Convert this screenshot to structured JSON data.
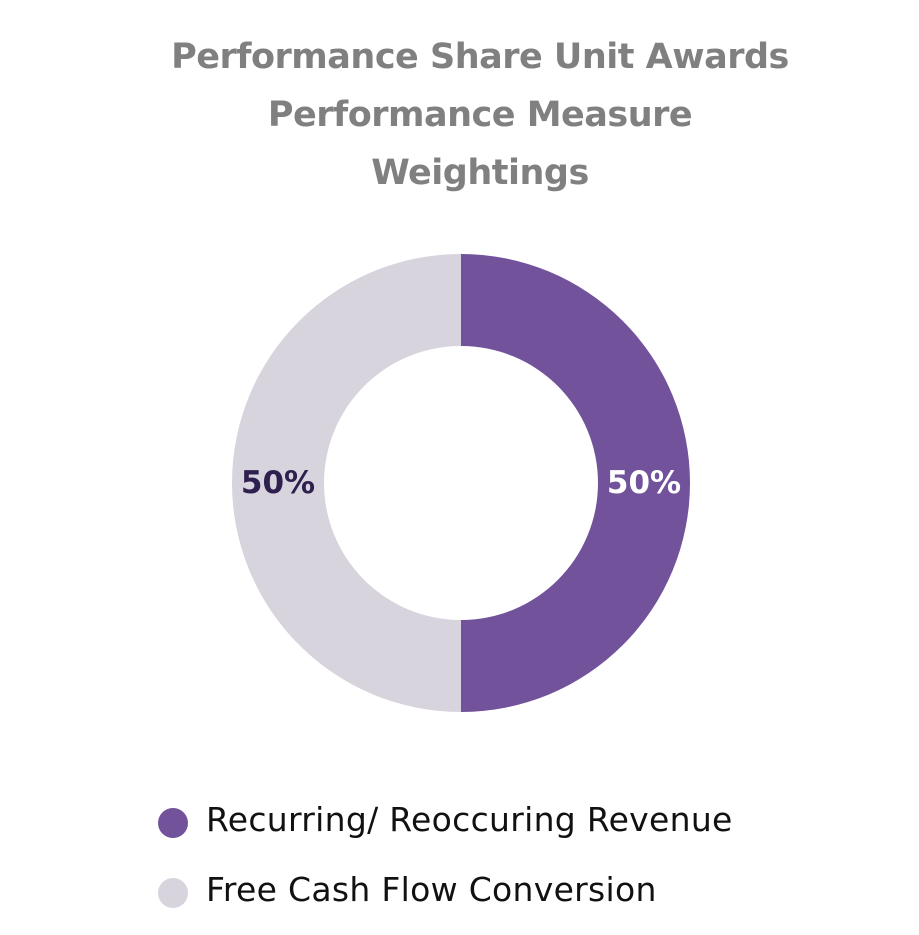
{
  "chart_data": {
    "type": "pie",
    "style": "donut",
    "title_lines": [
      "Performance Share Unit Awards",
      "Performance Measure",
      "Weightings"
    ],
    "title": "Performance Share Unit Awards Performance Measure Weightings",
    "slices": [
      {
        "label": "Recurring/ Reoccuring Revenue",
        "value": 50,
        "display": "50%",
        "color": "#71529b",
        "label_color": "#ffffff"
      },
      {
        "label": "Free Cash Flow Conversion",
        "value": 50,
        "display": "50%",
        "color": "#d7d4de",
        "label_color": "#2e1f4f"
      }
    ],
    "legend_placement": "bottom"
  },
  "colors": {
    "title": "#808080",
    "legend_text": "#111111",
    "background": "#ffffff"
  }
}
